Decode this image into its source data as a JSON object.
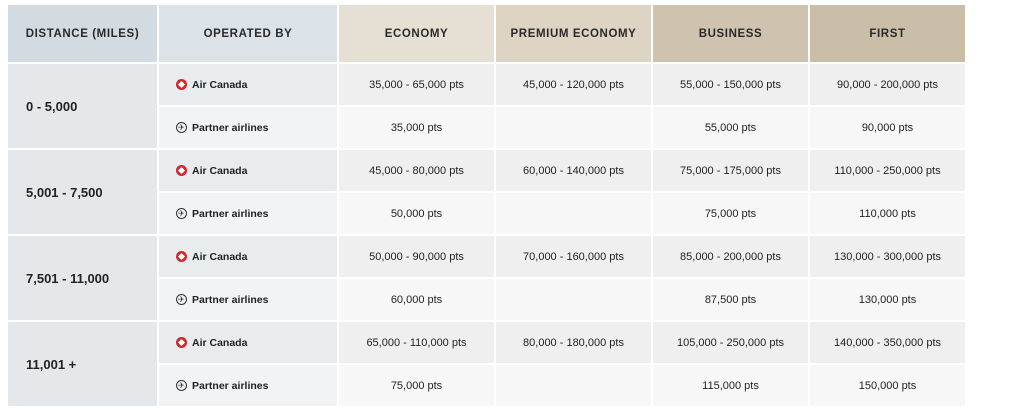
{
  "headers": {
    "distance": "DISTANCE (MILES)",
    "operated_by": "OPERATED BY",
    "economy": "ECONOMY",
    "premium_economy": "PREMIUM ECONOMY",
    "business": "BUSINESS",
    "first": "FIRST"
  },
  "operators": {
    "air_canada": "Air Canada",
    "partner": "Partner airlines"
  },
  "icons": {
    "air_canada": "air-canada-maple-leaf-icon",
    "partner": "airplane-circle-icon"
  },
  "rows": [
    {
      "distance": "0 - 5,000",
      "air_canada": {
        "economy": "35,000 - 65,000 pts",
        "premium_economy": "45,000 - 120,000 pts",
        "business": "55,000 - 150,000 pts",
        "first": "90,000 - 200,000 pts"
      },
      "partner": {
        "economy": "35,000 pts",
        "premium_economy": "",
        "business": "55,000 pts",
        "first": "90,000 pts"
      }
    },
    {
      "distance": "5,001 - 7,500",
      "air_canada": {
        "economy": "45,000 - 80,000 pts",
        "premium_economy": "60,000 - 140,000 pts",
        "business": "75,000 - 175,000 pts",
        "first": "110,000 - 250,000 pts"
      },
      "partner": {
        "economy": "50,000 pts",
        "premium_economy": "",
        "business": "75,000 pts",
        "first": "110,000 pts"
      }
    },
    {
      "distance": "7,501 - 11,000",
      "air_canada": {
        "economy": "50,000 - 90,000 pts",
        "premium_economy": "70,000 - 160,000 pts",
        "business": "85,000 - 200,000 pts",
        "first": "130,000 - 300,000 pts"
      },
      "partner": {
        "economy": "60,000 pts",
        "premium_economy": "",
        "business": "87,500 pts",
        "first": "130,000 pts"
      }
    },
    {
      "distance": "11,001 +",
      "air_canada": {
        "economy": "65,000 - 110,000 pts",
        "premium_economy": "80,000 - 180,000 pts",
        "business": "105,000 - 250,000 pts",
        "first": "140,000 - 350,000 pts"
      },
      "partner": {
        "economy": "75,000 pts",
        "premium_economy": "",
        "business": "115,000 pts",
        "first": "150,000 pts"
      }
    }
  ]
}
